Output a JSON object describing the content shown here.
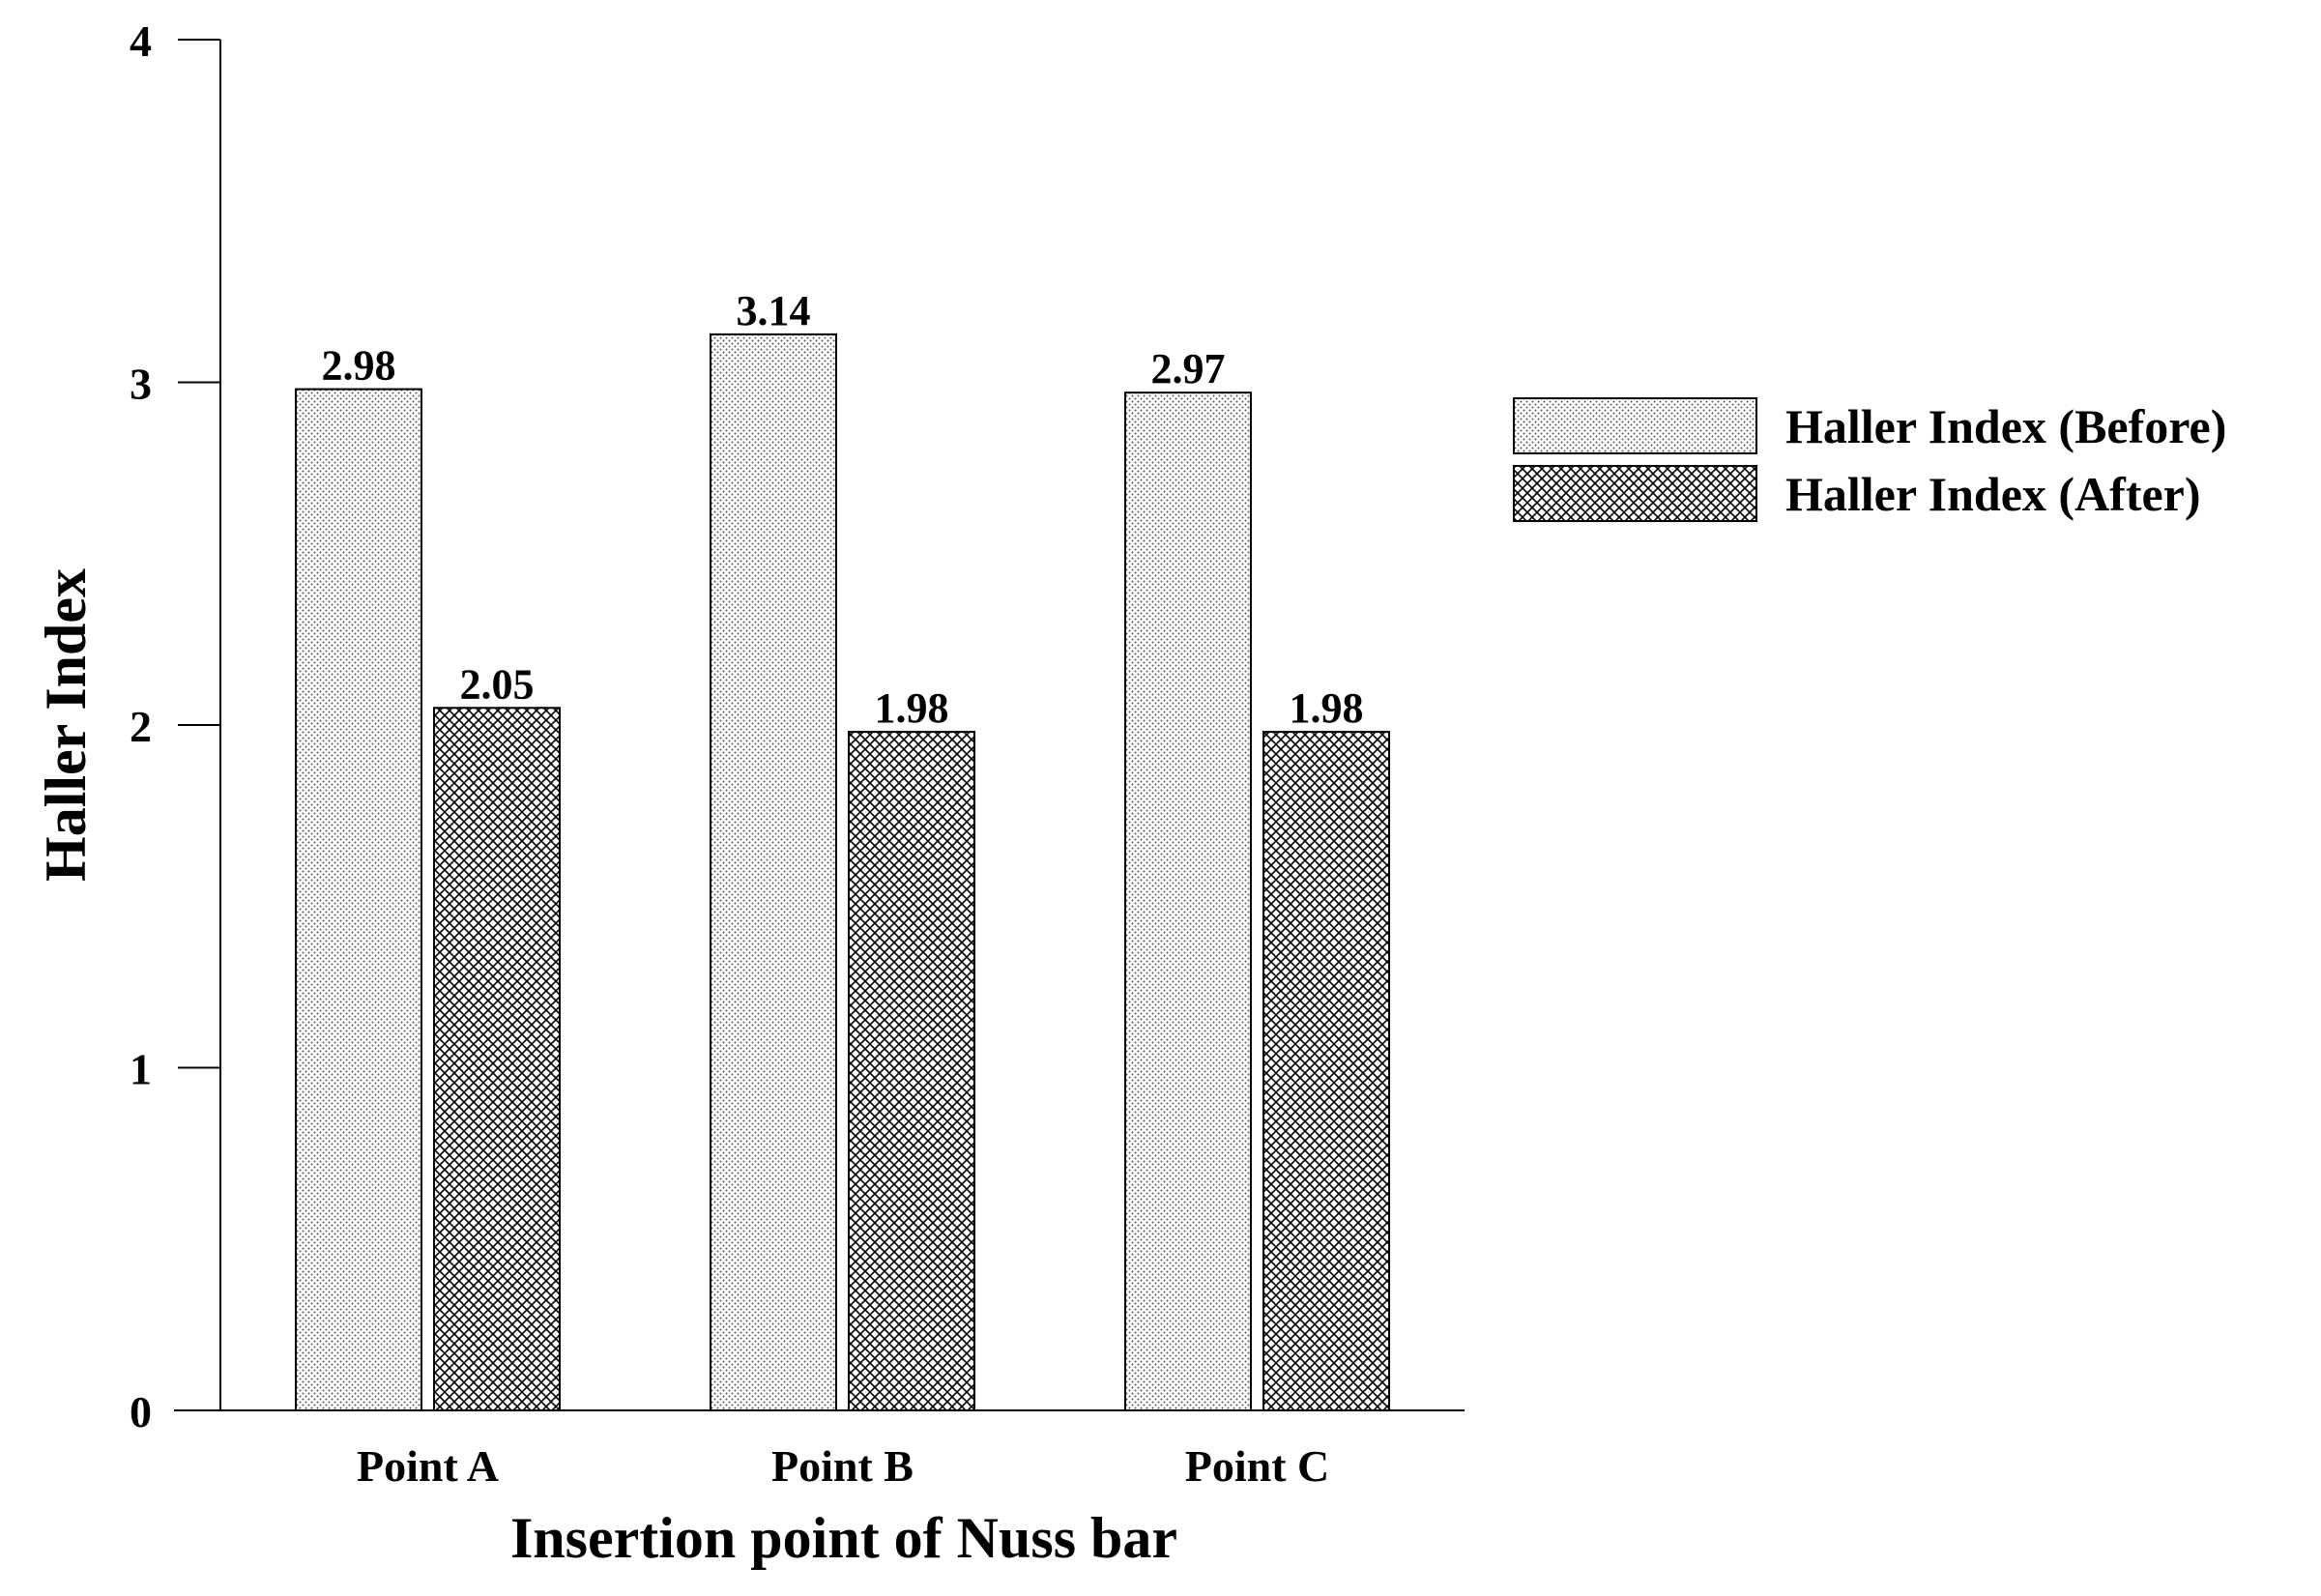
{
  "chart_data": {
    "type": "bar",
    "categories": [
      "Point A",
      "Point B",
      "Point C"
    ],
    "series": [
      {
        "name": "Haller Index (Before)",
        "pattern": "dots",
        "values": [
          2.98,
          3.14,
          2.97
        ]
      },
      {
        "name": "Haller Index (After)",
        "pattern": "crosshatch",
        "values": [
          2.05,
          1.98,
          1.98
        ]
      }
    ],
    "data_labels": [
      [
        "2.98",
        "3.14",
        "2.97"
      ],
      [
        "2.05",
        "1.98",
        "1.98"
      ]
    ],
    "title": "",
    "xlabel": "Insertion point of Nuss bar",
    "ylabel": "Haller Index",
    "ylim": [
      0,
      4
    ],
    "yticks": [
      0,
      1,
      2,
      3,
      4
    ],
    "grid": false,
    "legend_position": "right"
  },
  "colors": {
    "bar_fill": "#ffffff",
    "bar_stroke": "#000000",
    "axis": "#000000"
  }
}
